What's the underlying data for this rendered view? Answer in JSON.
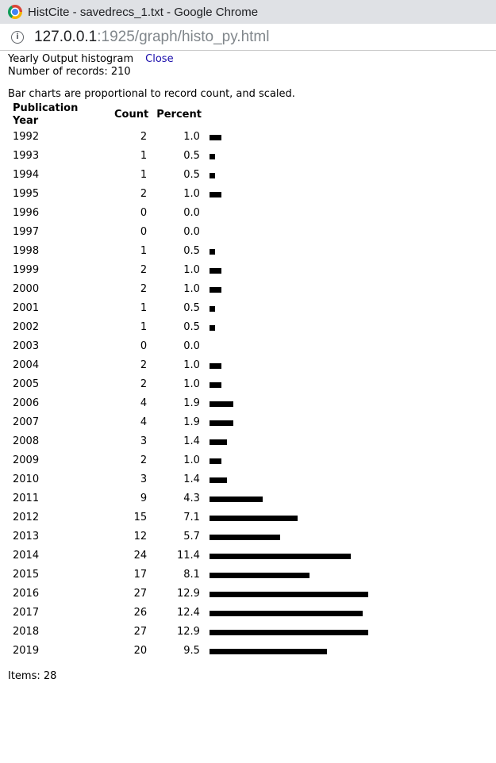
{
  "browser": {
    "window_title": "HistCite - savedrecs_1.txt - Google Chrome",
    "url_host": "127.0.0.1",
    "url_rest": ":1925/graph/histo_py.html"
  },
  "page": {
    "heading": "Yearly Output histogram",
    "close_label": "Close",
    "records_text": "Number of records: 210",
    "note": "Bar charts are proportional to record count, and scaled.",
    "items_text": "Items: 28"
  },
  "table": {
    "headers": [
      "Publication Year",
      "Count",
      "Percent"
    ]
  },
  "chart_data": {
    "type": "bar",
    "categories": [
      "1992",
      "1993",
      "1994",
      "1995",
      "1996",
      "1997",
      "1998",
      "1999",
      "2000",
      "2001",
      "2002",
      "2003",
      "2004",
      "2005",
      "2006",
      "2007",
      "2008",
      "2009",
      "2010",
      "2011",
      "2012",
      "2013",
      "2014",
      "2015",
      "2016",
      "2017",
      "2018",
      "2019"
    ],
    "values": [
      2,
      1,
      1,
      2,
      0,
      0,
      1,
      2,
      2,
      1,
      1,
      0,
      2,
      2,
      4,
      4,
      3,
      2,
      3,
      9,
      15,
      12,
      24,
      17,
      27,
      26,
      27,
      20
    ],
    "percents": [
      "1.0",
      "0.5",
      "0.5",
      "1.0",
      "0.0",
      "0.0",
      "0.5",
      "1.0",
      "1.0",
      "0.5",
      "0.5",
      "0.0",
      "1.0",
      "1.0",
      "1.9",
      "1.9",
      "1.4",
      "1.0",
      "1.4",
      "4.3",
      "7.1",
      "5.7",
      "11.4",
      "8.1",
      "12.9",
      "12.4",
      "12.9",
      "9.5"
    ]
  }
}
